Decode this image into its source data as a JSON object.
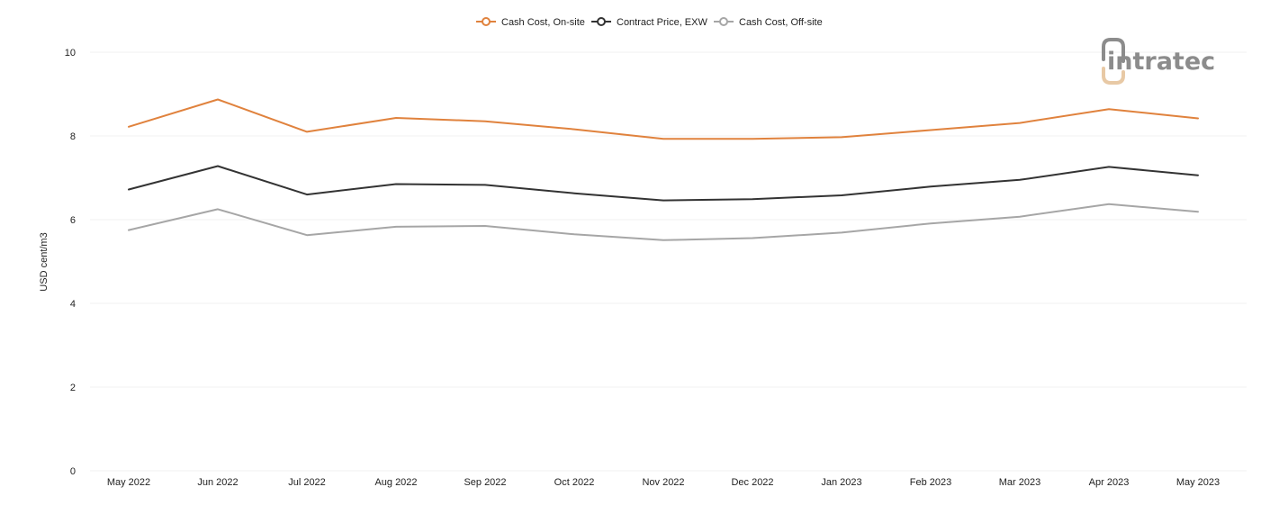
{
  "chart_data": {
    "type": "line",
    "title": "",
    "xlabel": "",
    "ylabel": "USD cent/m3",
    "ylim": [
      0,
      10
    ],
    "yticks": [
      0,
      2,
      4,
      6,
      8,
      10
    ],
    "grid": true,
    "legend_position": "top-center",
    "categories": [
      "May 2022",
      "Jun 2022",
      "Jul 2022",
      "Aug 2022",
      "Sep 2022",
      "Oct 2022",
      "Nov 2022",
      "Dec 2022",
      "Jan 2023",
      "Feb 2023",
      "Mar 2023",
      "Apr 2023",
      "May 2023"
    ],
    "series": [
      {
        "name": "Cash Cost, On-site",
        "color": "#e0823d",
        "values": [
          8.22,
          8.87,
          8.1,
          8.43,
          8.35,
          8.16,
          7.93,
          7.93,
          7.97,
          8.14,
          8.31,
          8.64,
          8.42
        ]
      },
      {
        "name": "Contract Price, EXW",
        "color": "#333333",
        "values": [
          6.72,
          7.28,
          6.6,
          6.85,
          6.83,
          6.63,
          6.46,
          6.49,
          6.58,
          6.79,
          6.95,
          7.26,
          7.06
        ]
      },
      {
        "name": "Cash Cost, Off-site",
        "color": "#a6a6a6",
        "values": [
          5.75,
          6.25,
          5.63,
          5.83,
          5.85,
          5.65,
          5.51,
          5.56,
          5.69,
          5.91,
          6.07,
          6.37,
          6.19
        ]
      }
    ]
  },
  "brand": {
    "logo_text": "intratec",
    "logo_color": "#8c8c8c",
    "logo_accent": "#e8c9a5"
  }
}
